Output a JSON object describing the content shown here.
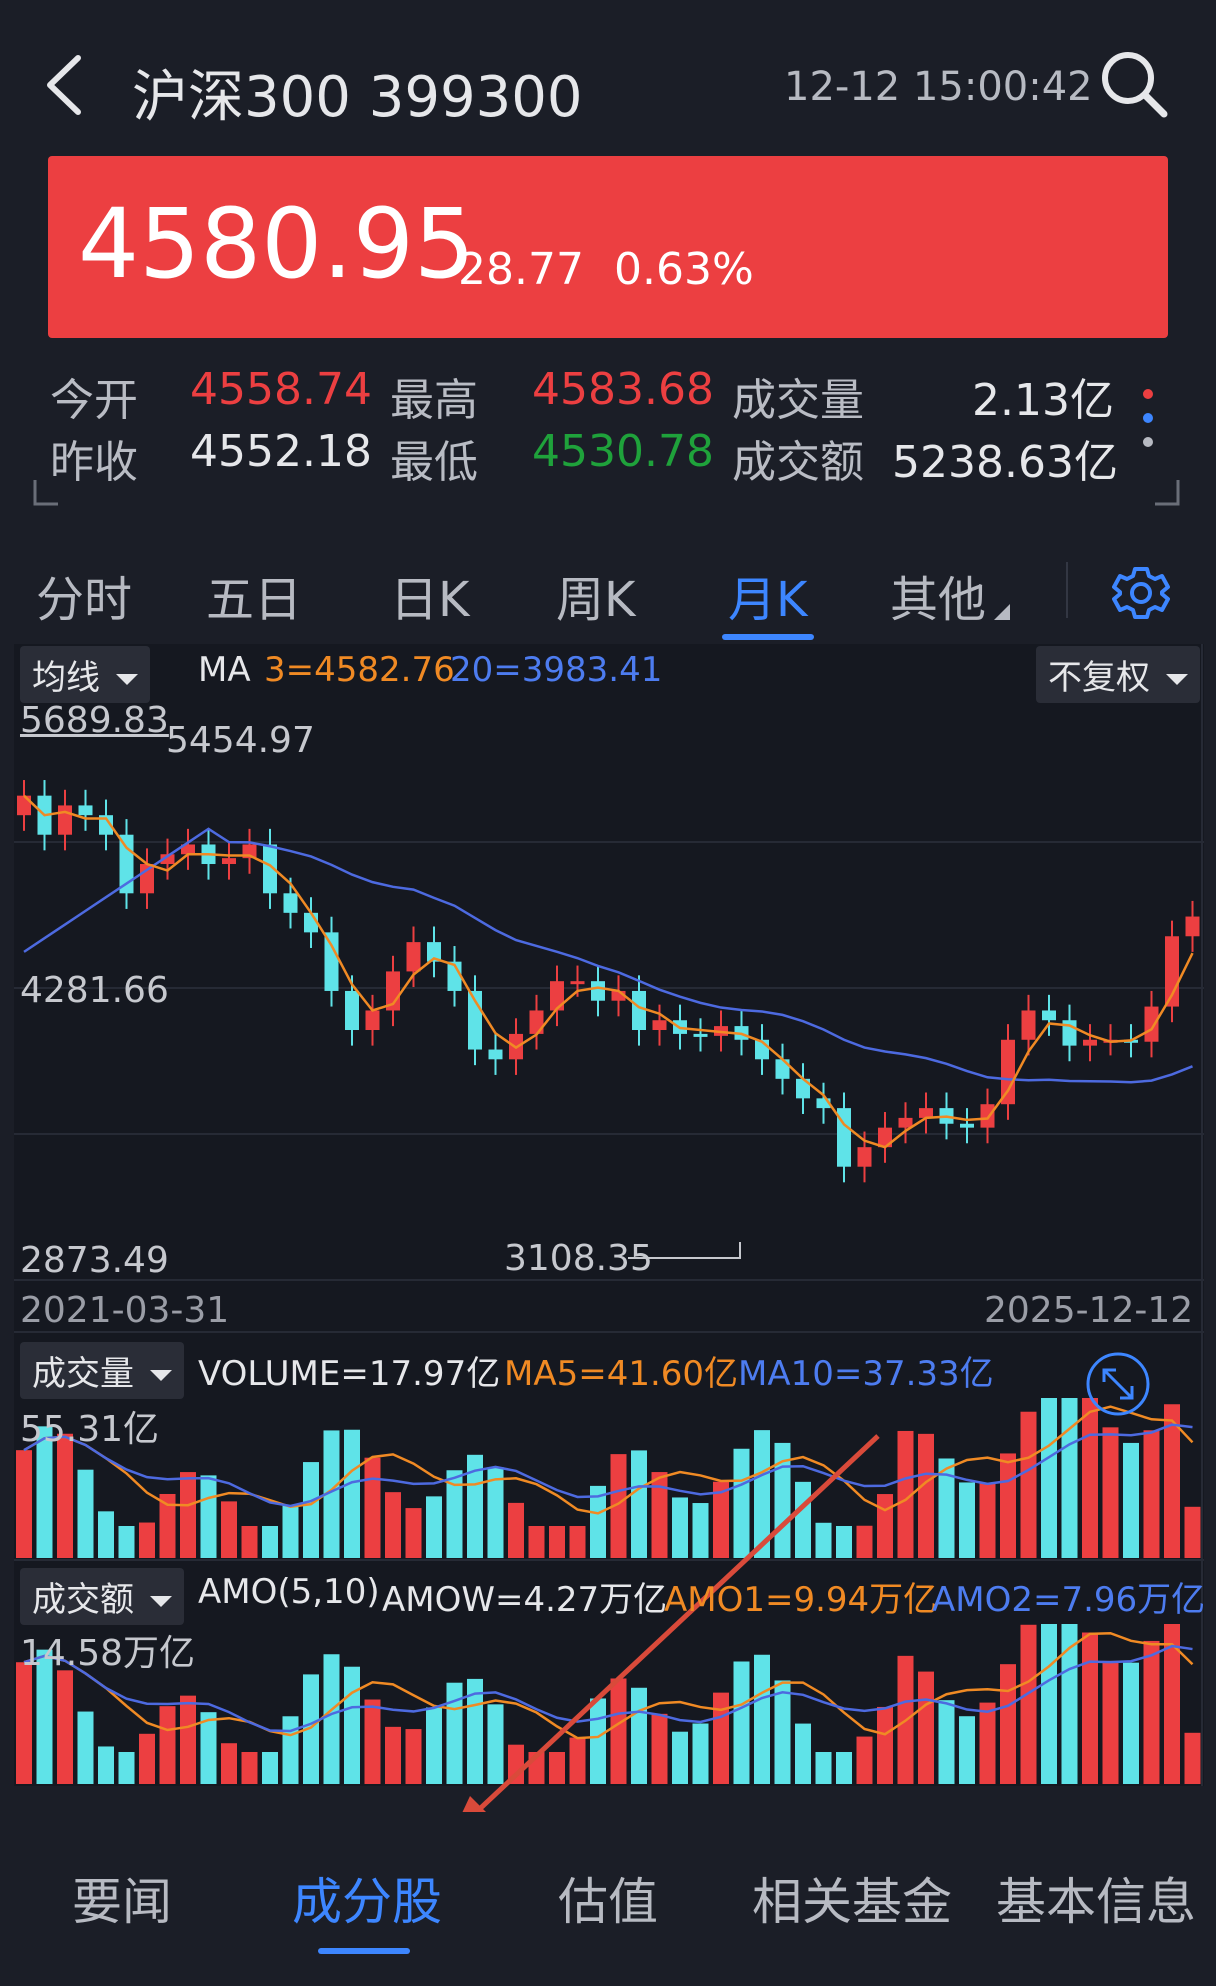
{
  "header": {
    "title": "沪深300 399300",
    "datetime": "12-12 15:00:42"
  },
  "quote": {
    "price": "4580.95",
    "change": "28.77",
    "change_pct": "0.63%",
    "open_label": "今开",
    "open": "4558.74",
    "high_label": "最高",
    "high": "4583.68",
    "volume_label": "成交量",
    "volume": "2.13亿",
    "prev_close_label": "昨收",
    "prev_close": "4552.18",
    "low_label": "最低",
    "low": "4530.78",
    "amount_label": "成交额",
    "amount": "5238.63亿"
  },
  "tabs": [
    {
      "label": "分时"
    },
    {
      "label": "五日"
    },
    {
      "label": "日K"
    },
    {
      "label": "周K"
    },
    {
      "label": "月K"
    },
    {
      "label": "其他"
    }
  ],
  "active_tab": "月K",
  "main_chart": {
    "indicator_select": "均线",
    "ma_label": "MA",
    "ma3": "3=4582.76",
    "ma20": "20=3983.41",
    "adjust_select": "不复权",
    "max_label": "5689.83",
    "high_marker": "5454.97",
    "mid_label": "4281.66",
    "min_label": "2873.49",
    "low_marker": "3108.35",
    "start_date": "2021-03-31",
    "end_date": "2025-12-12"
  },
  "volume_chart": {
    "select": "成交量",
    "volume": "VOLUME=17.97亿",
    "ma5": "MA5=41.60亿",
    "ma10": "MA10=37.33亿",
    "max_label": "55.31亿"
  },
  "amount_chart": {
    "select": "成交额",
    "amo": "AMO(5,10)",
    "amow": "AMOW=4.27万亿",
    "amo1": "AMO1=9.94万亿",
    "amo2": "AMO2=7.96万亿",
    "max_label": "14.58万亿"
  },
  "bottom_nav": [
    {
      "label": "要闻"
    },
    {
      "label": "成分股"
    },
    {
      "label": "估值"
    },
    {
      "label": "相关基金"
    },
    {
      "label": "基本信息"
    }
  ],
  "active_nav": "成分股",
  "colors": {
    "up": "#ec3f41",
    "down": "#5fe3e8",
    "accent": "#3d86ff",
    "ma_short": "#f08a24",
    "ma_long": "#4d7cf0",
    "annotation_arrow": "#d94a3a"
  },
  "icons": [
    "back-arrow-icon",
    "search-icon",
    "gear-icon",
    "more-dots-icon",
    "caret-down-icon",
    "expand-icon"
  ]
}
